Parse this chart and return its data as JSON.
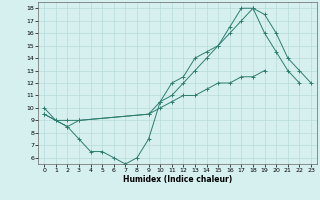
{
  "line1_x": [
    0,
    1,
    2,
    3,
    4,
    5,
    6,
    7,
    8,
    9,
    10,
    11,
    12,
    13,
    14,
    15,
    16,
    17,
    18,
    19,
    20,
    21,
    22
  ],
  "line1_y": [
    10,
    9,
    8.5,
    7.5,
    6.5,
    6.5,
    6,
    5.5,
    6,
    7.5,
    10.5,
    12,
    12.5,
    14,
    14.5,
    15,
    16.5,
    18,
    18,
    16,
    14.5,
    13,
    12
  ],
  "line2_x": [
    0,
    1,
    2,
    3,
    9,
    10,
    11,
    12,
    13,
    14,
    15,
    16,
    17,
    18,
    19
  ],
  "line2_y": [
    9.5,
    9,
    9,
    9,
    9.5,
    10,
    10.5,
    11,
    11,
    11.5,
    12,
    12,
    12.5,
    12.5,
    13
  ],
  "line3_x": [
    0,
    2,
    3,
    9,
    10,
    11,
    12,
    13,
    14,
    15,
    16,
    17,
    18,
    19,
    20,
    21,
    22,
    23
  ],
  "line3_y": [
    9.5,
    8.5,
    9,
    9.5,
    10.5,
    11,
    12,
    13,
    14,
    15,
    16,
    17,
    18,
    17.5,
    16,
    14,
    13,
    12
  ],
  "xlabel": "Humidex (Indice chaleur)",
  "xticks": [
    0,
    1,
    2,
    3,
    4,
    5,
    6,
    7,
    8,
    9,
    10,
    11,
    12,
    13,
    14,
    15,
    16,
    17,
    18,
    19,
    20,
    21,
    22,
    23
  ],
  "yticks": [
    6,
    7,
    8,
    9,
    10,
    11,
    12,
    13,
    14,
    15,
    16,
    17,
    18
  ],
  "xlim": [
    -0.5,
    23.5
  ],
  "ylim": [
    5.5,
    18.5
  ],
  "line_color": "#2e7d6e",
  "bg_color": "#d6f0f0",
  "grid_color": "#b8dada"
}
